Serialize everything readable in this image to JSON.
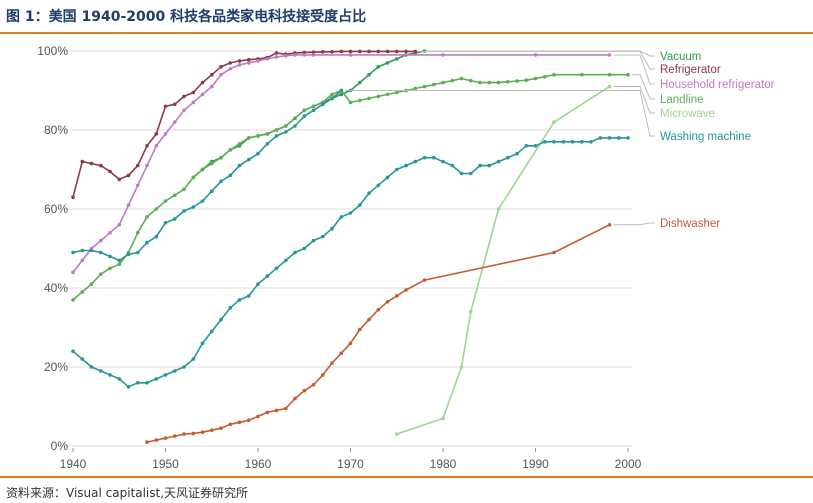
{
  "title": "图 1：美国 1940-2000 科技各品类家电科技接受度占比",
  "source": "资料来源：Visual capitalist,天风证券研究所",
  "colors": {
    "title": "#1f3d66",
    "rule": "#e07b24",
    "axis_text": "#555555",
    "grid": "#dddddd"
  },
  "chart_data": {
    "type": "line",
    "xlim": [
      1940,
      2000
    ],
    "ylim": [
      0,
      100
    ],
    "x_ticks": [
      "1940",
      "1950",
      "1960",
      "1970",
      "1980",
      "1990",
      "2000"
    ],
    "y_ticks": [
      "0%",
      "20%",
      "40%",
      "60%",
      "80%",
      "100%"
    ],
    "grid": "horizontal",
    "legend_position": "right",
    "series": [
      {
        "name": "Vacuum",
        "color": "#2e9a57",
        "points": [
          [
            1953,
            68
          ],
          [
            1954,
            70
          ],
          [
            1955,
            72
          ],
          [
            1956,
            73
          ],
          [
            1957,
            75
          ],
          [
            1958,
            76
          ],
          [
            1959,
            78
          ],
          [
            1960,
            78.5
          ],
          [
            1961,
            79
          ],
          [
            1962,
            80
          ],
          [
            1963,
            81
          ],
          [
            1964,
            83
          ],
          [
            1965,
            85
          ],
          [
            1966,
            86
          ],
          [
            1967,
            87
          ],
          [
            1968,
            88
          ],
          [
            1969,
            89
          ],
          [
            1970,
            90
          ],
          [
            1971,
            92
          ],
          [
            1972,
            94
          ],
          [
            1973,
            96
          ],
          [
            1974,
            97
          ],
          [
            1975,
            98
          ],
          [
            1976,
            99
          ],
          [
            1977,
            99.5
          ],
          [
            1978,
            100
          ]
        ]
      },
      {
        "name": "Refrigerator",
        "color": "#8b3a46",
        "points": [
          [
            1940,
            63
          ],
          [
            1941,
            72
          ],
          [
            1942,
            71.5
          ],
          [
            1943,
            71
          ],
          [
            1944,
            69.5
          ],
          [
            1945,
            67.5
          ],
          [
            1946,
            68.5
          ],
          [
            1947,
            71
          ],
          [
            1948,
            76
          ],
          [
            1949,
            79
          ],
          [
            1950,
            86
          ],
          [
            1951,
            86.5
          ],
          [
            1952,
            88.5
          ],
          [
            1953,
            89.5
          ],
          [
            1954,
            92
          ],
          [
            1955,
            94
          ],
          [
            1956,
            96
          ],
          [
            1957,
            97
          ],
          [
            1958,
            97.5
          ],
          [
            1959,
            97.8
          ],
          [
            1960,
            98
          ],
          [
            1961,
            98.3
          ],
          [
            1962,
            99.5
          ],
          [
            1963,
            99.2
          ],
          [
            1964,
            99.5
          ],
          [
            1965,
            99.6
          ],
          [
            1966,
            99.7
          ],
          [
            1967,
            99.8
          ],
          [
            1968,
            99.8
          ],
          [
            1969,
            99.9
          ],
          [
            1970,
            99.9
          ],
          [
            1971,
            99.9
          ],
          [
            1972,
            99.9
          ],
          [
            1973,
            99.9
          ],
          [
            1974,
            99.9
          ],
          [
            1975,
            99.9
          ],
          [
            1976,
            99.9
          ],
          [
            1977,
            99.9
          ]
        ]
      },
      {
        "name": "Household refrigerator",
        "color": "#c07ac9",
        "points": [
          [
            1940,
            44
          ],
          [
            1941,
            47
          ],
          [
            1942,
            50
          ],
          [
            1943,
            52
          ],
          [
            1944,
            54
          ],
          [
            1945,
            56
          ],
          [
            1946,
            61
          ],
          [
            1947,
            66
          ],
          [
            1948,
            71
          ],
          [
            1949,
            76
          ],
          [
            1950,
            79
          ],
          [
            1951,
            82
          ],
          [
            1952,
            85
          ],
          [
            1953,
            87
          ],
          [
            1954,
            89
          ],
          [
            1955,
            91
          ],
          [
            1956,
            94
          ],
          [
            1957,
            95.5
          ],
          [
            1958,
            96.5
          ],
          [
            1959,
            97
          ],
          [
            1960,
            97.5
          ],
          [
            1961,
            98
          ],
          [
            1962,
            98.5
          ],
          [
            1963,
            98.8
          ],
          [
            1964,
            99
          ],
          [
            1965,
            99
          ],
          [
            1966,
            99
          ],
          [
            1970,
            99
          ],
          [
            1980,
            99
          ],
          [
            1990,
            99
          ],
          [
            1998,
            99
          ]
        ]
      },
      {
        "name": "Landline",
        "color": "#5cae52",
        "points": [
          [
            1940,
            37
          ],
          [
            1941,
            39
          ],
          [
            1942,
            41
          ],
          [
            1943,
            43.5
          ],
          [
            1944,
            45
          ],
          [
            1945,
            46
          ],
          [
            1946,
            49
          ],
          [
            1947,
            54
          ],
          [
            1948,
            58
          ],
          [
            1949,
            60
          ],
          [
            1950,
            62
          ],
          [
            1951,
            63.5
          ],
          [
            1952,
            65
          ],
          [
            1953,
            68
          ],
          [
            1954,
            70
          ],
          [
            1955,
            71.5
          ],
          [
            1956,
            73
          ],
          [
            1957,
            75
          ],
          [
            1958,
            76.5
          ],
          [
            1959,
            78
          ],
          [
            1960,
            78.5
          ],
          [
            1961,
            79
          ],
          [
            1962,
            80
          ],
          [
            1963,
            81
          ],
          [
            1964,
            83
          ],
          [
            1965,
            85
          ],
          [
            1966,
            86
          ],
          [
            1967,
            87
          ],
          [
            1968,
            89
          ],
          [
            1969,
            90
          ],
          [
            1970,
            87
          ],
          [
            1971,
            87.5
          ],
          [
            1972,
            88
          ],
          [
            1973,
            88.5
          ],
          [
            1974,
            89
          ],
          [
            1975,
            89.5
          ],
          [
            1976,
            90
          ],
          [
            1977,
            90.5
          ],
          [
            1978,
            91
          ],
          [
            1979,
            91.5
          ],
          [
            1980,
            92
          ],
          [
            1981,
            92.5
          ],
          [
            1982,
            93
          ],
          [
            1983,
            92.5
          ],
          [
            1984,
            92
          ],
          [
            1985,
            92
          ],
          [
            1986,
            92
          ],
          [
            1987,
            92.2
          ],
          [
            1988,
            92.4
          ],
          [
            1989,
            92.6
          ],
          [
            1990,
            93
          ],
          [
            1991,
            93.5
          ],
          [
            1992,
            94
          ],
          [
            1995,
            94
          ],
          [
            1998,
            94
          ],
          [
            2000,
            94
          ]
        ]
      },
      {
        "name": "Microwave",
        "color": "#9dd78c",
        "points": [
          [
            1975,
            3
          ],
          [
            1980,
            7
          ],
          [
            1982,
            20
          ],
          [
            1983,
            34
          ],
          [
            1986,
            60
          ],
          [
            1992,
            82
          ],
          [
            1998,
            91
          ]
        ]
      },
      {
        "name": "Washing machine",
        "color": "#279696",
        "points": [
          [
            1940,
            49
          ],
          [
            1941,
            49.5
          ],
          [
            1942,
            49.5
          ],
          [
            1943,
            49
          ],
          [
            1944,
            48
          ],
          [
            1945,
            47
          ],
          [
            1946,
            48.5
          ],
          [
            1947,
            49
          ],
          [
            1948,
            51.5
          ],
          [
            1949,
            53
          ],
          [
            1950,
            56.5
          ],
          [
            1951,
            57.5
          ],
          [
            1952,
            59.5
          ],
          [
            1953,
            60.5
          ],
          [
            1954,
            62
          ],
          [
            1955,
            64.5
          ],
          [
            1956,
            67
          ],
          [
            1957,
            68.5
          ],
          [
            1958,
            71
          ],
          [
            1959,
            72.5
          ],
          [
            1960,
            74
          ],
          [
            1961,
            76.5
          ],
          [
            1962,
            78.5
          ],
          [
            1963,
            79.5
          ],
          [
            1964,
            81
          ],
          [
            1965,
            83.5
          ],
          [
            1966,
            85
          ],
          [
            1967,
            86.5
          ],
          [
            1968,
            88
          ],
          [
            1969,
            90
          ]
        ]
      },
      {
        "name": "",
        "color": "#279696",
        "points": [
          [
            1940,
            24
          ],
          [
            1941,
            22
          ],
          [
            1942,
            20
          ],
          [
            1943,
            19
          ],
          [
            1944,
            18
          ],
          [
            1945,
            17
          ],
          [
            1946,
            15
          ],
          [
            1947,
            16
          ],
          [
            1948,
            16
          ],
          [
            1949,
            17
          ],
          [
            1950,
            18
          ],
          [
            1951,
            19
          ],
          [
            1952,
            20
          ],
          [
            1953,
            22
          ],
          [
            1954,
            26
          ],
          [
            1955,
            29
          ],
          [
            1956,
            32
          ],
          [
            1957,
            35
          ],
          [
            1958,
            37
          ],
          [
            1959,
            38
          ],
          [
            1960,
            41
          ],
          [
            1961,
            43
          ],
          [
            1962,
            45
          ],
          [
            1963,
            47
          ],
          [
            1964,
            49
          ],
          [
            1965,
            50
          ],
          [
            1966,
            52
          ],
          [
            1967,
            53
          ],
          [
            1968,
            55
          ],
          [
            1969,
            58
          ],
          [
            1970,
            59
          ],
          [
            1971,
            61
          ],
          [
            1972,
            64
          ],
          [
            1973,
            66
          ],
          [
            1974,
            68
          ],
          [
            1975,
            70
          ],
          [
            1976,
            71
          ],
          [
            1977,
            72
          ],
          [
            1978,
            73
          ],
          [
            1979,
            73
          ],
          [
            1980,
            72
          ],
          [
            1981,
            71
          ],
          [
            1982,
            69
          ],
          [
            1983,
            69
          ],
          [
            1984,
            71
          ],
          [
            1985,
            71
          ],
          [
            1986,
            72
          ],
          [
            1987,
            73
          ],
          [
            1988,
            74
          ],
          [
            1989,
            76
          ],
          [
            1990,
            76
          ],
          [
            1991,
            77
          ],
          [
            1992,
            77
          ],
          [
            1993,
            77
          ],
          [
            1994,
            77
          ],
          [
            1995,
            77
          ],
          [
            1996,
            77
          ],
          [
            1997,
            78
          ],
          [
            1998,
            78
          ],
          [
            1999,
            78
          ],
          [
            2000,
            78
          ]
        ]
      },
      {
        "name": "Dishwasher",
        "color": "#c85a32",
        "points": [
          [
            1948,
            1
          ],
          [
            1949,
            1.5
          ],
          [
            1950,
            2
          ],
          [
            1951,
            2.5
          ],
          [
            1952,
            3
          ],
          [
            1953,
            3.2
          ],
          [
            1954,
            3.5
          ],
          [
            1955,
            4
          ],
          [
            1956,
            4.5
          ],
          [
            1957,
            5.5
          ],
          [
            1958,
            6
          ],
          [
            1959,
            6.5
          ],
          [
            1960,
            7.5
          ],
          [
            1961,
            8.5
          ],
          [
            1962,
            9
          ],
          [
            1963,
            9.5
          ],
          [
            1964,
            12
          ],
          [
            1965,
            14
          ],
          [
            1966,
            15.5
          ],
          [
            1967,
            18
          ],
          [
            1968,
            21
          ],
          [
            1969,
            23.5
          ],
          [
            1970,
            26
          ],
          [
            1971,
            29.5
          ],
          [
            1972,
            32
          ],
          [
            1973,
            34.5
          ],
          [
            1974,
            36.5
          ],
          [
            1975,
            38
          ],
          [
            1976,
            39.5
          ],
          [
            1978,
            42
          ],
          [
            1992,
            49
          ],
          [
            1998,
            56
          ]
        ]
      }
    ]
  }
}
